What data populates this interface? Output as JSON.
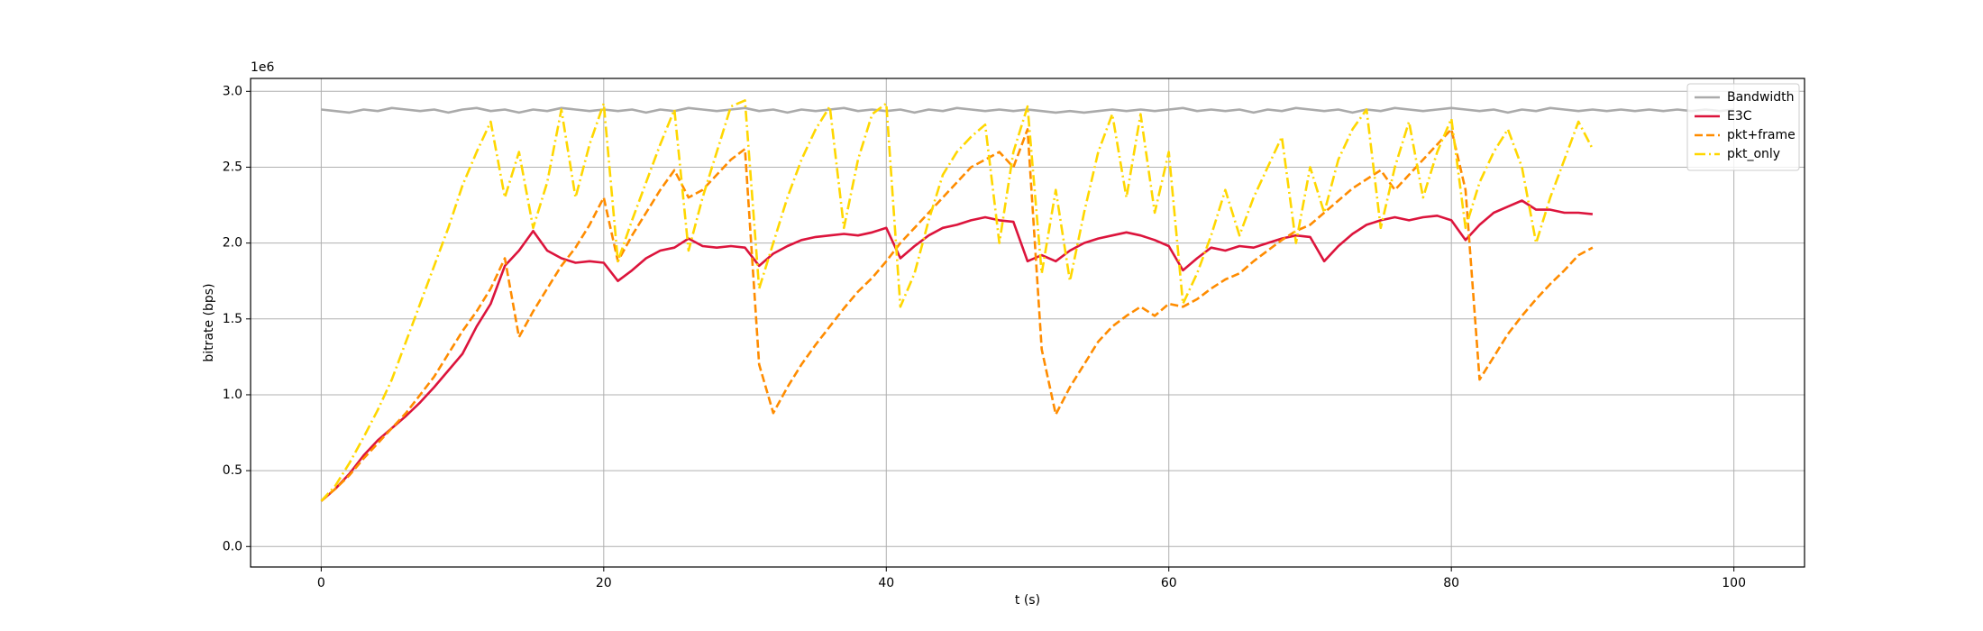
{
  "chart_data": {
    "type": "line",
    "x_label": "t (s)",
    "y_label": "bitrate (bps)",
    "y_offset_label": "1e6",
    "x": [
      0,
      1,
      2,
      3,
      4,
      5,
      6,
      7,
      8,
      9,
      10,
      11,
      12,
      13,
      14,
      15,
      16,
      17,
      18,
      19,
      20,
      21,
      22,
      23,
      24,
      25,
      26,
      27,
      28,
      29,
      30,
      31,
      32,
      33,
      34,
      35,
      36,
      37,
      38,
      39,
      40,
      41,
      42,
      43,
      44,
      45,
      46,
      47,
      48,
      49,
      50,
      51,
      52,
      53,
      54,
      55,
      56,
      57,
      58,
      59,
      60,
      61,
      62,
      63,
      64,
      65,
      66,
      67,
      68,
      69,
      70,
      71,
      72,
      73,
      74,
      75,
      76,
      77,
      78,
      79,
      80,
      81,
      82,
      83,
      84,
      85,
      86,
      87,
      88,
      89,
      90,
      91,
      92,
      93,
      94,
      95,
      96,
      97,
      98,
      99,
      100
    ],
    "series": [
      {
        "name": "Bandwidth",
        "color": "#aaaaaa",
        "dash": "solid",
        "values": [
          2.88,
          2.87,
          2.86,
          2.88,
          2.87,
          2.89,
          2.88,
          2.87,
          2.88,
          2.86,
          2.88,
          2.89,
          2.87,
          2.88,
          2.86,
          2.88,
          2.87,
          2.89,
          2.88,
          2.87,
          2.88,
          2.87,
          2.88,
          2.86,
          2.88,
          2.87,
          2.89,
          2.88,
          2.87,
          2.88,
          2.89,
          2.87,
          2.88,
          2.86,
          2.88,
          2.87,
          2.88,
          2.89,
          2.87,
          2.88,
          2.87,
          2.88,
          2.86,
          2.88,
          2.87,
          2.89,
          2.88,
          2.87,
          2.88,
          2.87,
          2.88,
          2.87,
          2.86,
          2.87,
          2.86,
          2.87,
          2.88,
          2.87,
          2.88,
          2.87,
          2.88,
          2.89,
          2.87,
          2.88,
          2.87,
          2.88,
          2.86,
          2.88,
          2.87,
          2.89,
          2.88,
          2.87,
          2.88,
          2.86,
          2.88,
          2.87,
          2.89,
          2.88,
          2.87,
          2.88,
          2.89,
          2.88,
          2.87,
          2.88,
          2.86,
          2.88,
          2.87,
          2.89,
          2.88,
          2.87,
          2.88,
          2.87,
          2.88,
          2.87,
          2.88,
          2.87,
          2.88,
          2.87,
          2.88,
          2.87,
          2.88
        ]
      },
      {
        "name": "E3C",
        "color": "#dc143c",
        "dash": "solid",
        "values": [
          0.3,
          0.38,
          0.48,
          0.6,
          0.7,
          0.78,
          0.86,
          0.95,
          1.05,
          1.16,
          1.27,
          1.45,
          1.6,
          1.85,
          1.95,
          2.08,
          1.95,
          1.9,
          1.87,
          1.88,
          1.87,
          1.75,
          1.82,
          1.9,
          1.95,
          1.97,
          2.03,
          1.98,
          1.97,
          1.98,
          1.97,
          1.85,
          1.93,
          1.98,
          2.02,
          2.04,
          2.05,
          2.06,
          2.05,
          2.07,
          2.1,
          1.9,
          1.98,
          2.05,
          2.1,
          2.12,
          2.15,
          2.17,
          2.15,
          2.14,
          1.88,
          1.92,
          1.88,
          1.95,
          2.0,
          2.03,
          2.05,
          2.07,
          2.05,
          2.02,
          1.98,
          1.82,
          1.9,
          1.97,
          1.95,
          1.98,
          1.97,
          2.0,
          2.03,
          2.05,
          2.04,
          1.88,
          1.98,
          2.06,
          2.12,
          2.15,
          2.17,
          2.15,
          2.17,
          2.18,
          2.15,
          2.02,
          2.12,
          2.2,
          2.24,
          2.28,
          2.22,
          2.22,
          2.2,
          2.2,
          2.19,
          null,
          null,
          null,
          null,
          null,
          null,
          null,
          null,
          null,
          null
        ]
      },
      {
        "name": "pkt+frame",
        "color": "#ff8c00",
        "dash": "dashed",
        "values": [
          0.3,
          0.38,
          0.47,
          0.58,
          0.68,
          0.78,
          0.88,
          1.0,
          1.12,
          1.27,
          1.42,
          1.55,
          1.7,
          1.9,
          1.38,
          1.55,
          1.7,
          1.85,
          1.97,
          2.12,
          2.3,
          1.88,
          2.05,
          2.2,
          2.35,
          2.48,
          2.3,
          2.35,
          2.45,
          2.55,
          2.62,
          1.2,
          0.88,
          1.05,
          1.2,
          1.33,
          1.45,
          1.57,
          1.68,
          1.77,
          1.88,
          2.0,
          2.1,
          2.2,
          2.3,
          2.4,
          2.5,
          2.55,
          2.6,
          2.5,
          2.75,
          1.3,
          0.87,
          1.05,
          1.2,
          1.35,
          1.45,
          1.52,
          1.58,
          1.52,
          1.6,
          1.58,
          1.63,
          1.7,
          1.76,
          1.8,
          1.88,
          1.95,
          2.02,
          2.08,
          2.12,
          2.2,
          2.28,
          2.36,
          2.42,
          2.48,
          2.35,
          2.45,
          2.55,
          2.65,
          2.75,
          2.35,
          1.1,
          1.25,
          1.4,
          1.52,
          1.63,
          1.73,
          1.82,
          1.92,
          1.97,
          null,
          null,
          null,
          null,
          null,
          null,
          null,
          null,
          null,
          null
        ]
      },
      {
        "name": "pkt_only",
        "color": "#ffd700",
        "dash": "dashdot",
        "values": [
          0.3,
          0.4,
          0.55,
          0.72,
          0.9,
          1.1,
          1.35,
          1.6,
          1.85,
          2.1,
          2.38,
          2.6,
          2.8,
          2.3,
          2.6,
          2.1,
          2.4,
          2.88,
          2.3,
          2.65,
          2.92,
          1.88,
          2.15,
          2.4,
          2.65,
          2.88,
          1.95,
          2.3,
          2.6,
          2.9,
          2.94,
          1.7,
          2.0,
          2.3,
          2.55,
          2.75,
          2.9,
          2.1,
          2.55,
          2.85,
          2.92,
          1.58,
          1.8,
          2.15,
          2.45,
          2.6,
          2.7,
          2.78,
          2.0,
          2.6,
          2.9,
          1.8,
          2.35,
          1.75,
          2.2,
          2.6,
          2.85,
          2.3,
          2.85,
          2.2,
          2.6,
          1.6,
          1.8,
          2.05,
          2.35,
          2.05,
          2.3,
          2.5,
          2.7,
          2.0,
          2.5,
          2.2,
          2.55,
          2.75,
          2.88,
          2.1,
          2.5,
          2.8,
          2.3,
          2.6,
          2.82,
          2.1,
          2.4,
          2.6,
          2.75,
          2.5,
          2.0,
          2.3,
          2.55,
          2.8,
          2.62,
          null,
          null,
          null,
          null,
          null,
          null,
          null,
          null,
          null,
          null
        ]
      }
    ],
    "xlim": [
      -5,
      105
    ],
    "xticks": [
      0,
      20,
      40,
      60,
      80,
      100
    ],
    "ylim": [
      -0.135,
      3.085
    ],
    "yticks": [
      {
        "value": 0,
        "label": "0.0"
      },
      {
        "value": 0.5,
        "label": "0.5"
      },
      {
        "value": 1,
        "label": "1.0"
      },
      {
        "value": 1.5,
        "label": "1.5"
      },
      {
        "value": 2,
        "label": "2.0"
      },
      {
        "value": 2.5,
        "label": "2.5"
      },
      {
        "value": 3,
        "label": "3.0"
      }
    ],
    "grid": true,
    "legend": "upper right"
  }
}
